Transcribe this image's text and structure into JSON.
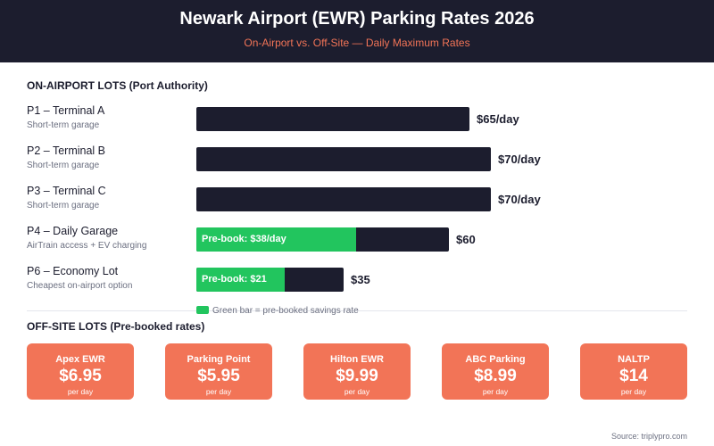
{
  "header": {
    "title": "Newark Airport (EWR) Parking Rates 2026",
    "subtitle": "On-Airport vs. Off-Site — Daily Maximum Rates"
  },
  "chart_data": {
    "type": "bar",
    "orientation": "horizontal",
    "section_title": "ON-AIRPORT LOTS (Port Authority)",
    "categories": [
      "P1 – Terminal A",
      "P2 – Terminal B",
      "P3 – Terminal C",
      "P4 – Daily Garage",
      "P6 – Economy Lot"
    ],
    "descriptions": [
      "Short-term garage",
      "Short-term garage",
      "Short-term garage",
      "AirTrain access + EV charging",
      "Cheapest on-airport option"
    ],
    "series": [
      {
        "name": "Daily maximum rate",
        "values": [
          65,
          70,
          70,
          60,
          35
        ]
      },
      {
        "name": "Pre-booked rate",
        "values": [
          null,
          null,
          null,
          38,
          21
        ]
      }
    ],
    "value_labels": [
      "$65/day",
      "$70/day",
      "$70/day",
      "$60",
      "$35"
    ],
    "prebook_labels": [
      null,
      null,
      null,
      "Pre-book: $38/day",
      "Pre-book: $21"
    ],
    "legend": "Green bar = pre-booked savings rate",
    "xlim": [
      0,
      70
    ]
  },
  "offsite": {
    "title": "OFF-SITE LOTS (Pre-booked rates)",
    "cards": [
      {
        "name": "Apex EWR",
        "rate": "$6.95",
        "unit": "per day"
      },
      {
        "name": "Parking Point",
        "rate": "$5.95",
        "unit": "per day"
      },
      {
        "name": "Hilton EWR",
        "rate": "$9.99",
        "unit": "per day"
      },
      {
        "name": "ABC Parking",
        "rate": "$8.99",
        "unit": "per day"
      },
      {
        "name": "NALTP",
        "rate": "$14",
        "unit": "per day"
      }
    ]
  },
  "source": "Source: triplypro.com",
  "colors": {
    "header_bg": "#1c1d2e",
    "accent": "#f27457",
    "bar": "#1c1d2e",
    "prebook": "#22c55e"
  }
}
